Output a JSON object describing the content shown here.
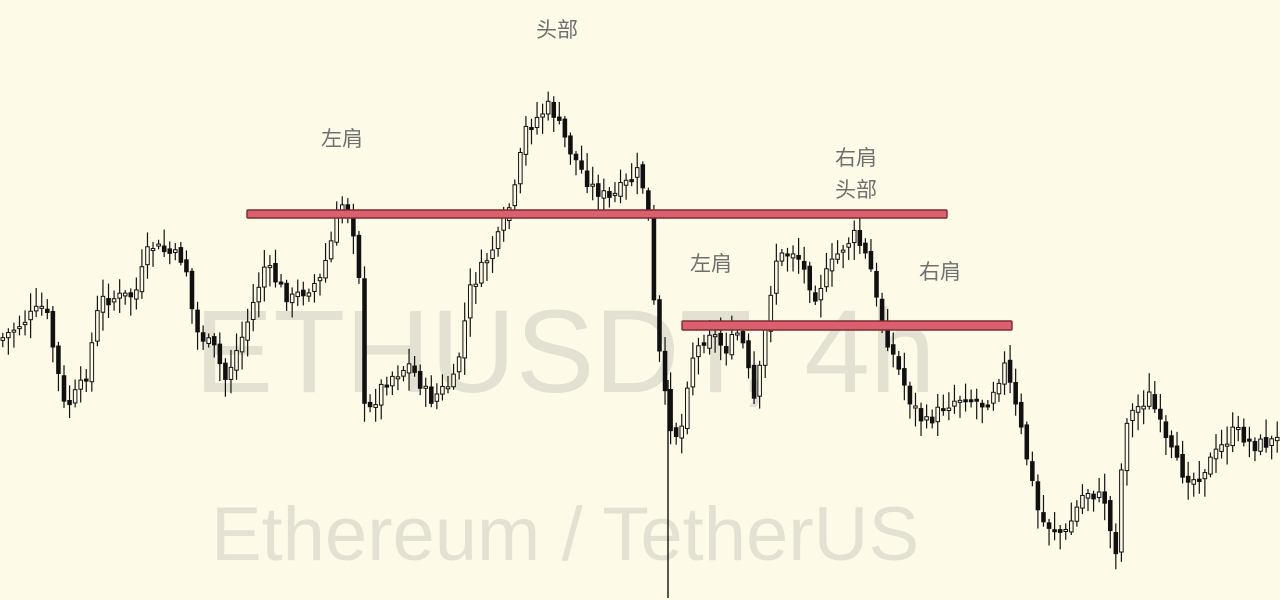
{
  "watermark": {
    "symbol": "ETHUSDT, 4h",
    "description": "Ethereum / TetherUS"
  },
  "annotations": {
    "big_pattern": {
      "left_shoulder": "左肩",
      "head": "头部",
      "right_shoulder": "右肩"
    },
    "small_pattern": {
      "left_shoulder": "左肩",
      "head": "头部",
      "right_shoulder": "右肩"
    }
  },
  "colors": {
    "background": "#fdfbe8",
    "candle": "#111111",
    "neckline_fill": "#d9606c",
    "neckline_border": "#7d2a33",
    "annotation_text": "#6f6f6f",
    "watermark": "#e3e1d2"
  },
  "chart_data": {
    "type": "candlestick",
    "title": "",
    "series": [
      {
        "name": "ETHUSDT, 4h",
        "kind": "candlestick"
      }
    ],
    "candle_count": 230,
    "pattern": "head-and-shoulders",
    "necklines": [
      {
        "name": "upper neckline",
        "price_level": 0.68
      },
      {
        "name": "lower neckline",
        "price_level": 0.46
      }
    ],
    "price_ylim": [
      0,
      1
    ],
    "grid": false,
    "legend": "none"
  }
}
